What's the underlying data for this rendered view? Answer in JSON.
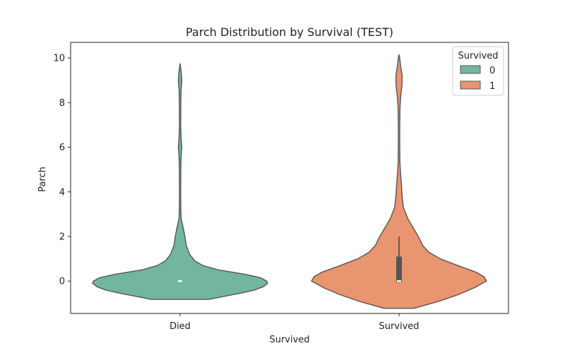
{
  "chart_data": {
    "type": "violin",
    "title": "Parch Distribution by Survival (TEST)",
    "xlabel": "Survived",
    "ylabel": "Parch",
    "categories": [
      "Died",
      "Survived"
    ],
    "ylim": [
      -1.45,
      10.7
    ],
    "yticks": [
      0,
      2,
      4,
      6,
      8,
      10
    ],
    "grid": false,
    "legend": {
      "title": "Survived",
      "position": "top-right",
      "entries": [
        {
          "label": "0",
          "color": "#72B69E"
        },
        {
          "label": "1",
          "color": "#E9956F"
        }
      ]
    },
    "series": [
      {
        "category": "Died",
        "hue": "0",
        "color": "#72B69E",
        "y_min": -0.82,
        "y_max": 9.75,
        "median": 0,
        "q1": 0,
        "q3": 0,
        "whisker_low": 0,
        "whisker_high": 0,
        "density": [
          [
            -0.82,
            0.33
          ],
          [
            -0.7,
            0.48
          ],
          [
            -0.55,
            0.68
          ],
          [
            -0.4,
            0.85
          ],
          [
            -0.25,
            0.95
          ],
          [
            -0.1,
            1.0
          ],
          [
            0.0,
            0.99
          ],
          [
            0.15,
            0.92
          ],
          [
            0.3,
            0.75
          ],
          [
            0.5,
            0.44
          ],
          [
            0.7,
            0.26
          ],
          [
            0.9,
            0.17
          ],
          [
            1.2,
            0.11
          ],
          [
            1.6,
            0.07
          ],
          [
            2.0,
            0.055
          ],
          [
            2.4,
            0.035
          ],
          [
            2.8,
            0.012
          ],
          [
            3.3,
            0.008
          ],
          [
            4.0,
            0.007
          ],
          [
            5.0,
            0.008
          ],
          [
            5.6,
            0.012
          ],
          [
            6.0,
            0.02
          ],
          [
            6.4,
            0.012
          ],
          [
            7.0,
            0.007
          ],
          [
            8.0,
            0.008
          ],
          [
            8.6,
            0.012
          ],
          [
            9.0,
            0.02
          ],
          [
            9.4,
            0.012
          ],
          [
            9.75,
            0.0
          ]
        ]
      },
      {
        "category": "Survived",
        "hue": "1",
        "color": "#E9956F",
        "y_min": -1.22,
        "y_max": 10.15,
        "median": 0,
        "q1": -0.05,
        "q3": 1.1,
        "whisker_low": -0.05,
        "whisker_high": 2.0,
        "density": [
          [
            -1.22,
            0.17
          ],
          [
            -1.1,
            0.28
          ],
          [
            -0.9,
            0.46
          ],
          [
            -0.6,
            0.68
          ],
          [
            -0.3,
            0.86
          ],
          [
            -0.1,
            0.95
          ],
          [
            0.0,
            1.0
          ],
          [
            0.2,
            0.97
          ],
          [
            0.4,
            0.88
          ],
          [
            0.7,
            0.67
          ],
          [
            1.0,
            0.47
          ],
          [
            1.3,
            0.34
          ],
          [
            1.6,
            0.27
          ],
          [
            2.0,
            0.22
          ],
          [
            2.4,
            0.16
          ],
          [
            2.8,
            0.1
          ],
          [
            3.3,
            0.05
          ],
          [
            3.8,
            0.036
          ],
          [
            4.3,
            0.028
          ],
          [
            4.8,
            0.018
          ],
          [
            5.3,
            0.01
          ],
          [
            6.0,
            0.008
          ],
          [
            7.0,
            0.008
          ],
          [
            7.8,
            0.011
          ],
          [
            8.3,
            0.02
          ],
          [
            8.8,
            0.034
          ],
          [
            9.2,
            0.036
          ],
          [
            9.6,
            0.02
          ],
          [
            10.0,
            0.008
          ],
          [
            10.15,
            0.0
          ]
        ]
      }
    ]
  }
}
